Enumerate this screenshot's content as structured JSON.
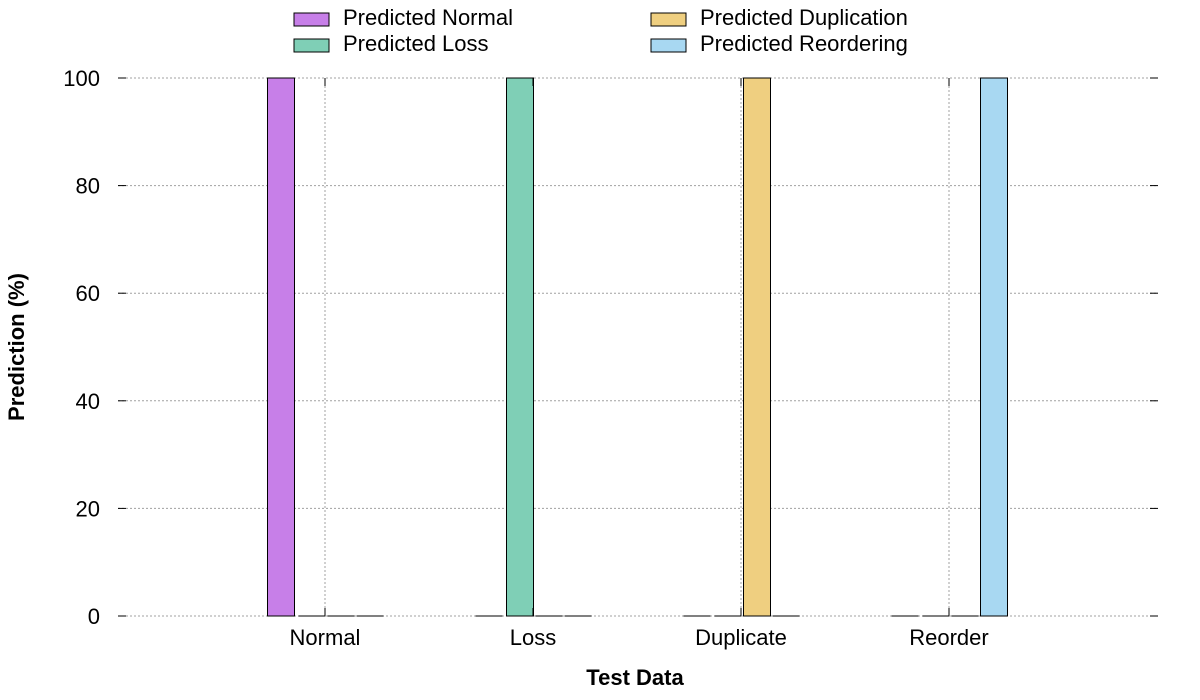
{
  "chart_data": {
    "type": "bar",
    "categories": [
      "Normal",
      "Loss",
      "Duplicate",
      "Reorder"
    ],
    "series": [
      {
        "name": "Predicted Normal",
        "color": "#c77fe8",
        "values": [
          100,
          0,
          0,
          0
        ]
      },
      {
        "name": "Predicted Loss",
        "color": "#7fcfb6",
        "values": [
          0,
          100,
          0,
          0
        ]
      },
      {
        "name": "Predicted Duplication",
        "color": "#efcf80",
        "values": [
          0,
          0,
          100,
          0
        ]
      },
      {
        "name": "Predicted Reordering",
        "color": "#a8d8f2",
        "values": [
          0,
          0,
          0,
          100
        ]
      }
    ],
    "title": "",
    "xlabel": "Test Data",
    "ylabel": "Prediction (%)",
    "ylim": [
      0,
      100
    ],
    "yticks": [
      0,
      20,
      40,
      60,
      80,
      100
    ],
    "grid": true,
    "legend_position": "top"
  }
}
